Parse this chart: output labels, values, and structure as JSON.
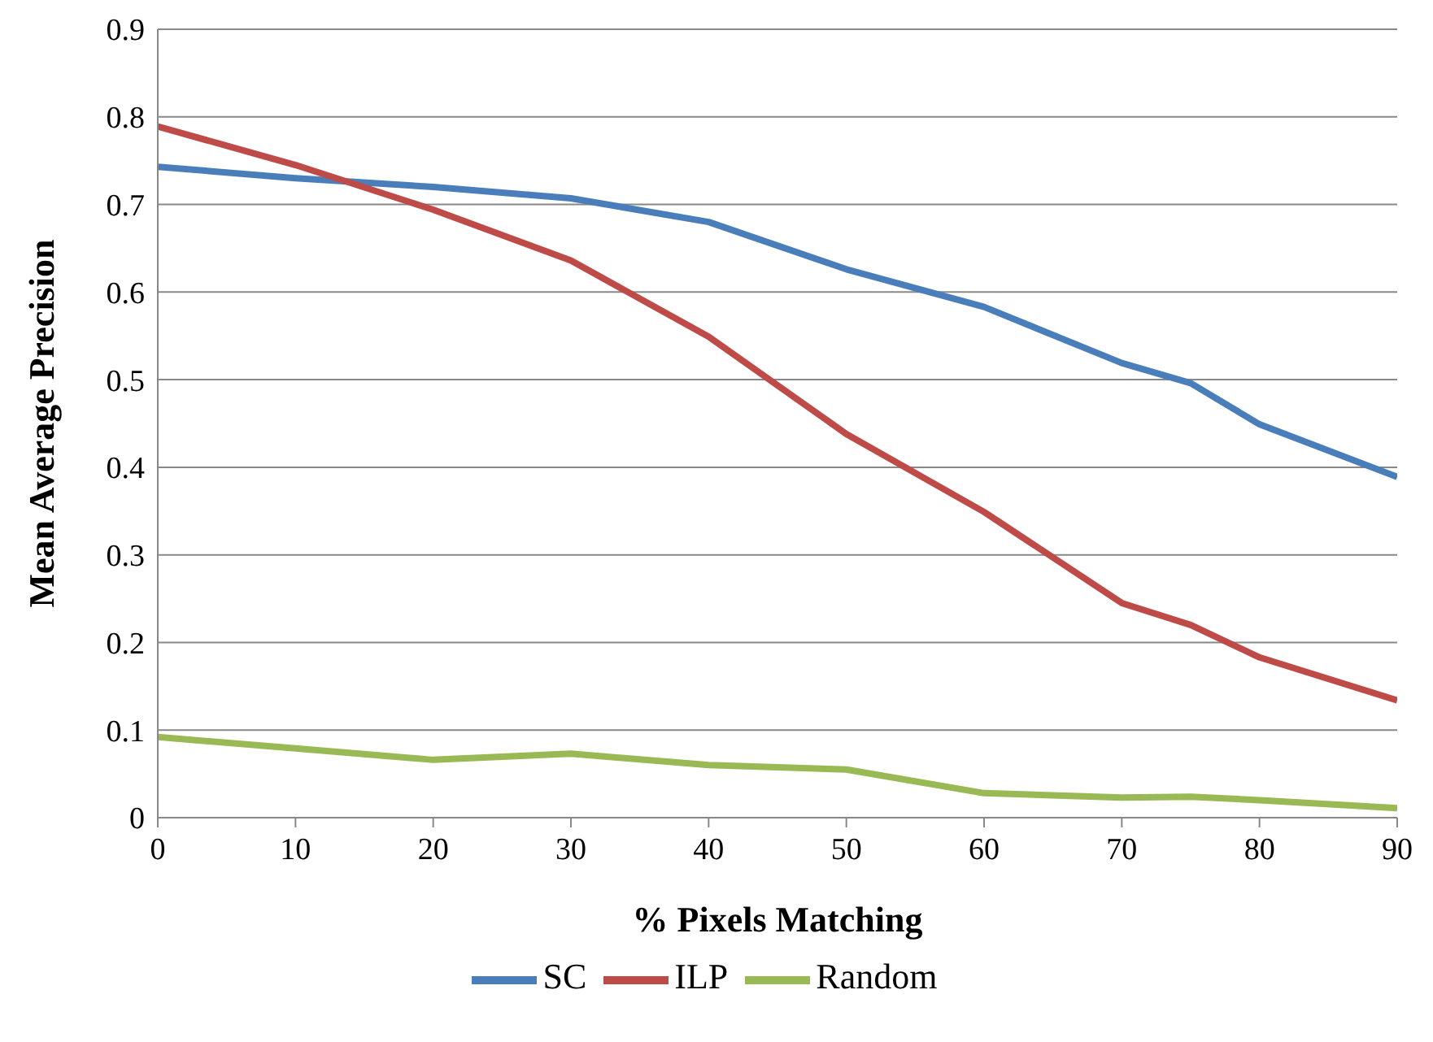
{
  "chart_data": {
    "type": "line",
    "xlabel": "% Pixels Matching",
    "ylabel": "Mean Average Precision",
    "x": [
      0,
      10,
      20,
      30,
      40,
      50,
      60,
      70,
      75,
      80,
      90
    ],
    "series": [
      {
        "name": "SC",
        "color": "#4a7ebb",
        "values": [
          0.743,
          0.73,
          0.72,
          0.707,
          0.68,
          0.626,
          0.583,
          0.519,
          0.496,
          0.449,
          0.389
        ]
      },
      {
        "name": "ILP",
        "color": "#be4b48",
        "values": [
          0.789,
          0.745,
          0.694,
          0.636,
          0.549,
          0.438,
          0.349,
          0.245,
          0.22,
          0.183,
          0.134
        ]
      },
      {
        "name": "Random",
        "color": "#98b954",
        "values": [
          0.092,
          0.079,
          0.066,
          0.073,
          0.06,
          0.055,
          0.028,
          0.023,
          0.024,
          0.02,
          0.011
        ]
      }
    ],
    "xlim": [
      0,
      90
    ],
    "xticks": [
      0,
      10,
      20,
      30,
      40,
      50,
      60,
      70,
      80,
      90
    ],
    "ylim": [
      0,
      0.9
    ],
    "yticks": [
      0,
      0.1,
      0.2,
      0.3,
      0.4,
      0.5,
      0.6,
      0.7,
      0.8,
      0.9
    ],
    "grid": "y",
    "legend": "bottom",
    "marker": "none",
    "line_style": "solid"
  }
}
